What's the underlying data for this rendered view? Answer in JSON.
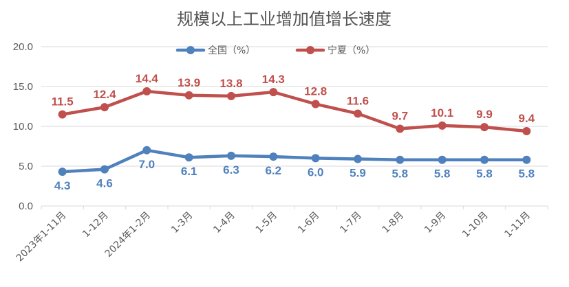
{
  "chart_data": {
    "type": "line",
    "title": "规模以上工业增加值增长速度",
    "xlabel": "",
    "ylabel": "",
    "ylim": [
      0,
      20
    ],
    "yticks": [
      "0.0",
      "5.0",
      "10.0",
      "15.0",
      "20.0"
    ],
    "grid": true,
    "legend_position": "top-center",
    "categories": [
      "2023年1-11月",
      "1-12月",
      "2024年1-2月",
      "1-3月",
      "1-4月",
      "1-5月",
      "1-6月",
      "1-7月",
      "1-8月",
      "1-9月",
      "1-10月",
      "1-11月"
    ],
    "series": [
      {
        "name": "全国（%）",
        "color": "#4F81BD",
        "values": [
          4.3,
          4.6,
          7.0,
          6.1,
          6.3,
          6.2,
          6.0,
          5.9,
          5.8,
          5.8,
          5.8,
          5.8
        ],
        "label_position": "below"
      },
      {
        "name": "宁夏（%）",
        "color": "#C0504D",
        "values": [
          11.5,
          12.4,
          14.4,
          13.9,
          13.8,
          14.3,
          12.8,
          11.6,
          9.7,
          10.1,
          9.9,
          9.4
        ],
        "label_position": "above"
      }
    ]
  }
}
